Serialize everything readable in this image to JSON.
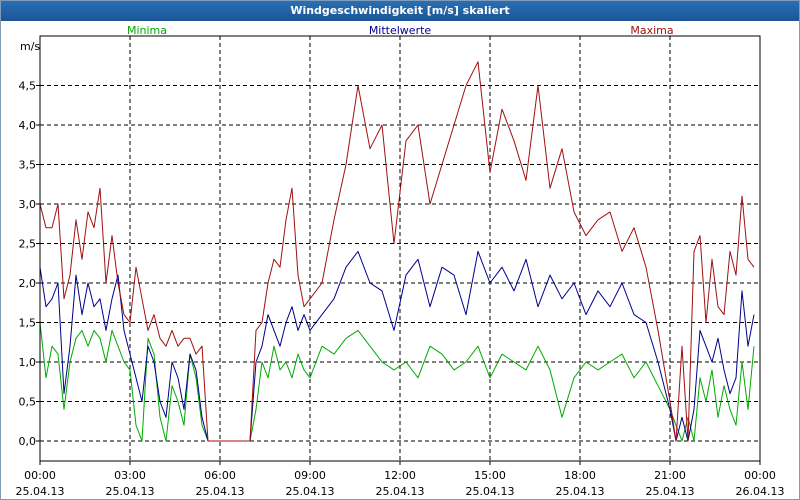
{
  "chart_data": {
    "type": "line",
    "title": "Windgeschwindigkeit [m/s] skaliert",
    "ylabel": "m/s",
    "ylim": [
      0,
      5
    ],
    "yticks": [
      {
        "v": 0,
        "label": "0,0"
      },
      {
        "v": 0.5,
        "label": "0,5"
      },
      {
        "v": 1.0,
        "label": "1,0"
      },
      {
        "v": 1.5,
        "label": "1,5"
      },
      {
        "v": 2.0,
        "label": "2,0"
      },
      {
        "v": 2.5,
        "label": "2,5"
      },
      {
        "v": 3.0,
        "label": "3,0"
      },
      {
        "v": 3.5,
        "label": "3,5"
      },
      {
        "v": 4.0,
        "label": "4,0"
      },
      {
        "v": 4.5,
        "label": "4,5"
      }
    ],
    "xlim": [
      0,
      24
    ],
    "xticks": [
      {
        "v": 0,
        "time": "00:00",
        "date": "25.04.13"
      },
      {
        "v": 3,
        "time": "03:00",
        "date": "25.04.13"
      },
      {
        "v": 6,
        "time": "06:00",
        "date": "25.04.13"
      },
      {
        "v": 9,
        "time": "09:00",
        "date": "25.04.13"
      },
      {
        "v": 12,
        "time": "12:00",
        "date": "25.04.13"
      },
      {
        "v": 15,
        "time": "15:00",
        "date": "25.04.13"
      },
      {
        "v": 18,
        "time": "18:00",
        "date": "25.04.13"
      },
      {
        "v": 21,
        "time": "21:00",
        "date": "25.04.13"
      },
      {
        "v": 24,
        "time": "00:00",
        "date": "26.04.13"
      }
    ],
    "grid": true,
    "legend_position": "top",
    "series": [
      {
        "name": "Minima",
        "color": "#00aa00",
        "x": [
          0,
          0.2,
          0.4,
          0.6,
          0.8,
          1.0,
          1.2,
          1.4,
          1.6,
          1.8,
          2.0,
          2.2,
          2.4,
          2.6,
          2.8,
          3.0,
          3.2,
          3.4,
          3.6,
          3.8,
          4.0,
          4.2,
          4.4,
          4.6,
          4.8,
          5.0,
          5.2,
          5.4,
          5.6,
          5.8,
          7.0,
          7.2,
          7.4,
          7.6,
          7.8,
          8.0,
          8.2,
          8.4,
          8.6,
          8.8,
          9.0,
          9.4,
          9.8,
          10.2,
          10.6,
          11.0,
          11.4,
          11.8,
          12.2,
          12.6,
          13.0,
          13.4,
          13.8,
          14.2,
          14.6,
          15.0,
          15.4,
          15.8,
          16.2,
          16.6,
          17.0,
          17.4,
          17.8,
          18.2,
          18.6,
          19.0,
          19.4,
          19.8,
          20.2,
          20.6,
          21.0,
          21.2,
          21.4,
          21.6,
          21.8,
          22.0,
          22.2,
          22.4,
          22.6,
          22.8,
          23.0,
          23.2,
          23.4,
          23.6,
          23.8
        ],
        "values": [
          1.5,
          0.8,
          1.2,
          1.1,
          0.4,
          1.0,
          1.3,
          1.4,
          1.2,
          1.4,
          1.3,
          1.0,
          1.4,
          1.2,
          1.0,
          0.9,
          0.2,
          0.0,
          1.3,
          1.1,
          0.3,
          0.0,
          0.7,
          0.5,
          0.2,
          1.1,
          0.8,
          0.2,
          0.0,
          0.0,
          0.0,
          0.4,
          1.0,
          0.8,
          1.2,
          0.9,
          1.0,
          0.8,
          1.1,
          0.9,
          0.8,
          1.2,
          1.1,
          1.3,
          1.4,
          1.2,
          1.0,
          0.9,
          1.0,
          0.8,
          1.2,
          1.1,
          0.9,
          1.0,
          1.2,
          0.8,
          1.1,
          1.0,
          0.9,
          1.2,
          0.9,
          0.3,
          0.8,
          1.0,
          0.9,
          1.0,
          1.1,
          0.8,
          1.0,
          0.7,
          0.4,
          0.2,
          0.0,
          0.3,
          0.0,
          0.8,
          0.5,
          0.9,
          0.3,
          0.7,
          0.4,
          0.2,
          1.0,
          0.4,
          1.2
        ]
      },
      {
        "name": "Mittelwerte",
        "color": "#00008b",
        "x": [
          0,
          0.2,
          0.4,
          0.6,
          0.8,
          1.0,
          1.2,
          1.4,
          1.6,
          1.8,
          2.0,
          2.2,
          2.4,
          2.6,
          2.8,
          3.0,
          3.2,
          3.4,
          3.6,
          3.8,
          4.0,
          4.2,
          4.4,
          4.6,
          4.8,
          5.0,
          5.2,
          5.4,
          5.6,
          5.8,
          7.0,
          7.2,
          7.4,
          7.6,
          7.8,
          8.0,
          8.2,
          8.4,
          8.6,
          8.8,
          9.0,
          9.4,
          9.8,
          10.2,
          10.6,
          11.0,
          11.4,
          11.8,
          12.2,
          12.6,
          13.0,
          13.4,
          13.8,
          14.2,
          14.6,
          15.0,
          15.4,
          15.8,
          16.2,
          16.6,
          17.0,
          17.4,
          17.8,
          18.2,
          18.6,
          19.0,
          19.4,
          19.8,
          20.2,
          20.6,
          21.0,
          21.2,
          21.4,
          21.6,
          21.8,
          22.0,
          22.2,
          22.4,
          22.6,
          22.8,
          23.0,
          23.2,
          23.4,
          23.6,
          23.8
        ],
        "values": [
          2.2,
          1.7,
          1.8,
          2.0,
          0.6,
          1.2,
          2.1,
          1.6,
          2.0,
          1.7,
          1.8,
          1.4,
          1.8,
          2.1,
          1.4,
          1.1,
          0.8,
          0.5,
          1.2,
          1.0,
          0.5,
          0.3,
          1.0,
          0.8,
          0.4,
          1.1,
          0.9,
          0.3,
          0.0,
          0.0,
          0.0,
          1.0,
          1.2,
          1.6,
          1.4,
          1.2,
          1.5,
          1.7,
          1.4,
          1.6,
          1.4,
          1.6,
          1.8,
          2.2,
          2.4,
          2.0,
          1.9,
          1.4,
          2.1,
          2.3,
          1.7,
          2.2,
          2.1,
          1.6,
          2.4,
          2.0,
          2.2,
          1.9,
          2.3,
          1.7,
          2.1,
          1.8,
          2.0,
          1.6,
          1.9,
          1.7,
          2.0,
          1.6,
          1.5,
          1.0,
          0.4,
          0.0,
          0.3,
          0.0,
          0.4,
          1.4,
          1.2,
          1.0,
          1.3,
          0.9,
          0.6,
          0.8,
          1.9,
          1.2,
          1.6
        ]
      },
      {
        "name": "Maxima",
        "color": "#a01010",
        "x": [
          0,
          0.2,
          0.4,
          0.6,
          0.8,
          1.0,
          1.2,
          1.4,
          1.6,
          1.8,
          2.0,
          2.2,
          2.4,
          2.6,
          2.8,
          3.0,
          3.2,
          3.4,
          3.6,
          3.8,
          4.0,
          4.2,
          4.4,
          4.6,
          4.8,
          5.0,
          5.2,
          5.4,
          5.6,
          5.8,
          7.0,
          7.2,
          7.4,
          7.6,
          7.8,
          8.0,
          8.2,
          8.4,
          8.6,
          8.8,
          9.0,
          9.4,
          9.8,
          10.2,
          10.6,
          11.0,
          11.4,
          11.8,
          12.2,
          12.6,
          13.0,
          13.4,
          13.8,
          14.2,
          14.6,
          15.0,
          15.4,
          15.8,
          16.2,
          16.6,
          17.0,
          17.4,
          17.8,
          18.2,
          18.6,
          19.0,
          19.4,
          19.8,
          20.2,
          20.6,
          21.0,
          21.2,
          21.4,
          21.6,
          21.8,
          22.0,
          22.2,
          22.4,
          22.6,
          22.8,
          23.0,
          23.2,
          23.4,
          23.6,
          23.8
        ],
        "values": [
          3.0,
          2.7,
          2.7,
          3.0,
          1.8,
          2.1,
          2.8,
          2.3,
          2.9,
          2.7,
          3.2,
          2.0,
          2.6,
          2.0,
          1.6,
          1.5,
          2.2,
          1.8,
          1.4,
          1.6,
          1.3,
          1.2,
          1.4,
          1.2,
          1.3,
          1.3,
          1.1,
          1.2,
          0.0,
          0.0,
          0.0,
          1.4,
          1.5,
          2.0,
          2.3,
          2.2,
          2.8,
          3.2,
          2.1,
          1.7,
          1.8,
          2.0,
          2.8,
          3.5,
          4.5,
          3.7,
          4.0,
          2.5,
          3.8,
          4.0,
          3.0,
          3.5,
          4.0,
          4.5,
          4.8,
          3.4,
          4.2,
          3.8,
          3.3,
          4.5,
          3.2,
          3.7,
          2.9,
          2.6,
          2.8,
          2.9,
          2.4,
          2.7,
          2.2,
          1.4,
          0.5,
          0.0,
          1.2,
          0.0,
          2.4,
          2.6,
          1.5,
          2.3,
          1.7,
          1.6,
          2.4,
          2.1,
          3.1,
          2.3,
          2.2
        ]
      }
    ]
  }
}
